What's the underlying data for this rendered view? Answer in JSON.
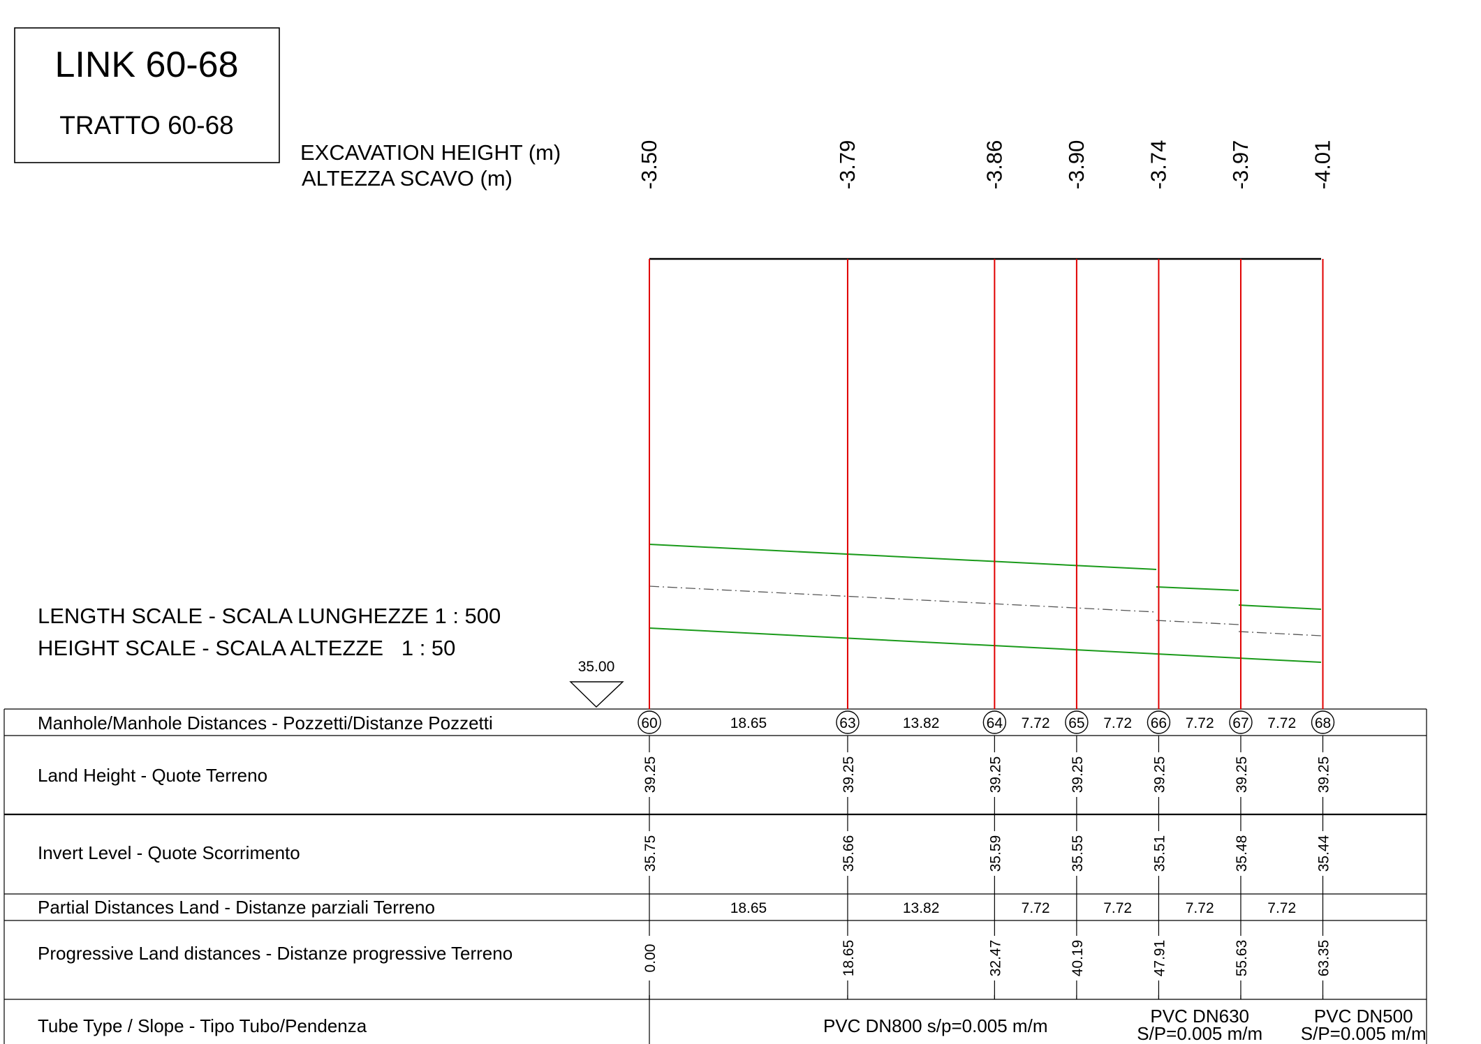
{
  "title_box": {
    "title": "LINK 60-68",
    "subtitle": "TRATTO 60-68"
  },
  "excavation_label": {
    "line1": "EXCAVATION HEIGHT (m)",
    "line2": "ALTEZZA SCAVO (m)"
  },
  "scales": {
    "length": "LENGTH SCALE - SCALA LUNGHEZZE 1 : 500",
    "height": "HEIGHT SCALE - SCALA ALTEZZE   1 : 50"
  },
  "datum": {
    "label": "35.00"
  },
  "row_labels": {
    "manholes": "Manhole/Manhole Distances - Pozzetti/Distanze Pozzetti",
    "land_height": "Land Height - Quote Terreno",
    "invert_level": "Invert Level - Quote Scorrimento",
    "partial": "Partial Distances Land - Distanze parziali Terreno",
    "progressive": "Progressive Land distances - Distanze progressive Terreno",
    "tube": "Tube Type / Slope - Tipo Tubo/Pendenza"
  },
  "manholes": [
    {
      "id": "60",
      "progressive": 0.0,
      "progressive_label": "0.00",
      "excavation": "-3.50",
      "land_height": "39.25",
      "invert": "35.75"
    },
    {
      "id": "63",
      "progressive": 18.65,
      "progressive_label": "18.65",
      "excavation": "-3.79",
      "land_height": "39.25",
      "invert": "35.66"
    },
    {
      "id": "64",
      "progressive": 32.47,
      "progressive_label": "32.47",
      "excavation": "-3.86",
      "land_height": "39.25",
      "invert": "35.59"
    },
    {
      "id": "65",
      "progressive": 40.19,
      "progressive_label": "40.19",
      "excavation": "-3.90",
      "land_height": "39.25",
      "invert": "35.55"
    },
    {
      "id": "66",
      "progressive": 47.91,
      "progressive_label": "47.91",
      "excavation": "-3.74",
      "land_height": "39.25",
      "invert": "35.51"
    },
    {
      "id": "67",
      "progressive": 55.63,
      "progressive_label": "55.63",
      "excavation": "-3.97",
      "land_height": "39.25",
      "invert": "35.48"
    },
    {
      "id": "68",
      "progressive": 63.35,
      "progressive_label": "63.35",
      "excavation": "-4.01",
      "land_height": "39.25",
      "invert": "35.44"
    }
  ],
  "segments": [
    "18.65",
    "13.82",
    "7.72",
    "7.72",
    "7.72",
    "7.72"
  ],
  "tubes": [
    {
      "line1": "PVC DN800 s/p=0.005 m/m",
      "line2": ""
    },
    {
      "line1": "PVC DN630",
      "line2": "S/P=0.005 m/m"
    },
    {
      "line1": "PVC DN500",
      "line2": "S/P=0.005 m/m"
    }
  ],
  "colors": {
    "ink": "#000000",
    "manhole_line": "#e00000",
    "pipe": "#1a9a1a",
    "axis_dash": "#555555"
  }
}
